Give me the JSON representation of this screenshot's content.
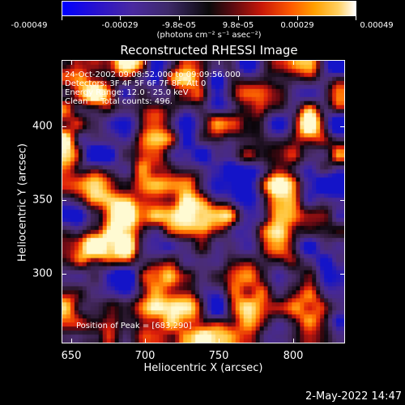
{
  "colorbar": {
    "ticks": [
      "-0.00049",
      "-0.00029",
      "-9.8e-05",
      "9.8e-05",
      "0.00029",
      "0.00049"
    ],
    "units": "(photons cm⁻² s⁻¹ asec⁻²)",
    "colors": [
      "#0000ff",
      "#3e2a6a",
      "#0a0a0a",
      "#c81808",
      "#ff5a00",
      "#ffd060",
      "#ffffff"
    ]
  },
  "plot": {
    "title": "Reconstructed RHESSI Image",
    "annotation": {
      "time": "24-Oct-2002 09:08:52.000 to 09:09:56.000",
      "detectors": "Detectors: 3F 4F 5F 6F 7F 8F, Att 0",
      "energy": "Energy Range: 12.0 - 25.0 keV",
      "clean": "Clean     Total counts: 496.",
      "peak": "Position of Peak = [683,290]"
    },
    "x_axis": {
      "title": "Heliocentric X (arcsec)",
      "ticks": [
        "650",
        "700",
        "750",
        "800"
      ],
      "range": [
        643,
        834
      ]
    },
    "y_axis": {
      "title": "Heliocentric Y (arcsec)",
      "ticks": [
        "300",
        "350",
        "400"
      ],
      "range": [
        253,
        444
      ]
    }
  },
  "footer": {
    "timestamp": "2-May-2022 14:47"
  }
}
